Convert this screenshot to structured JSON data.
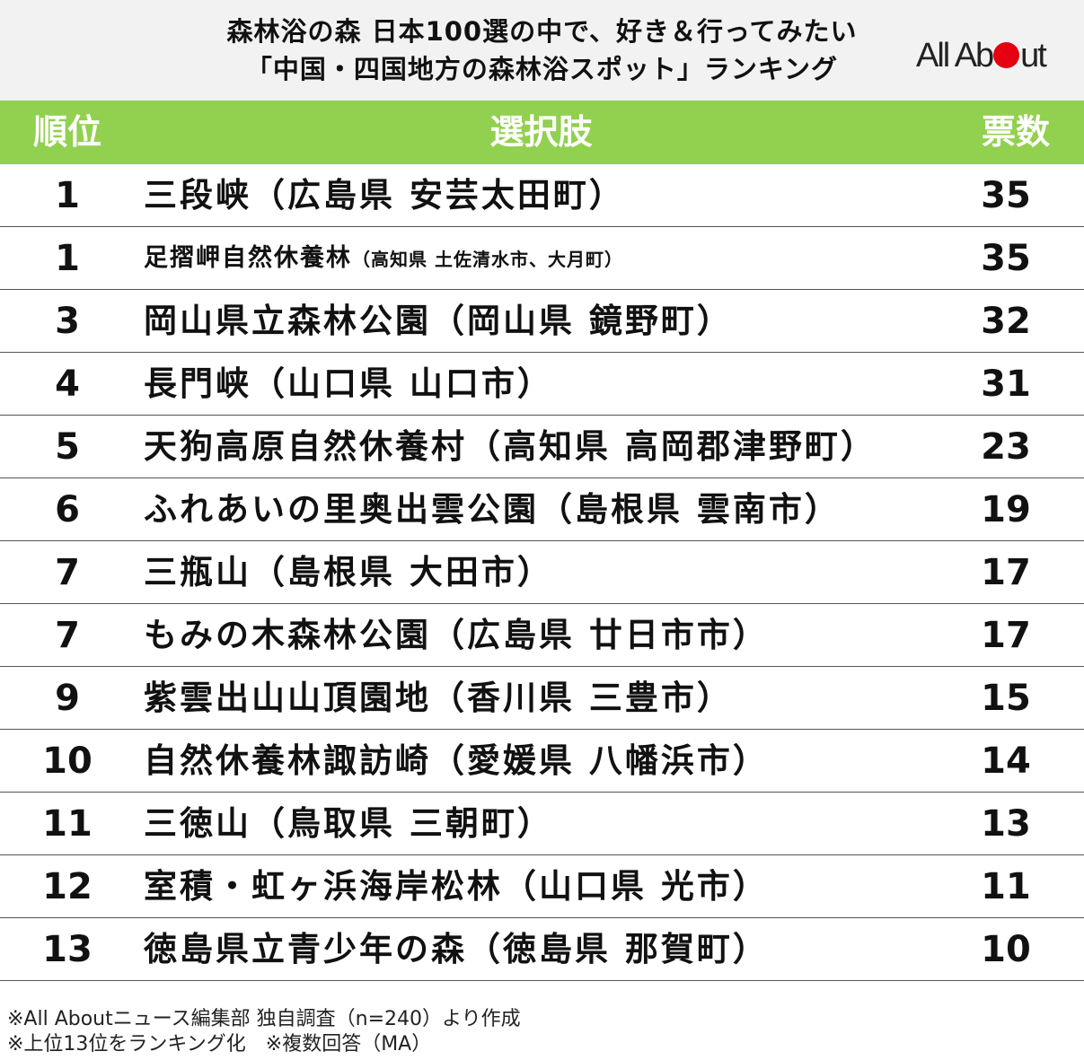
{
  "title": {
    "line1": "森林浴の森 日本100選の中で、好き＆行ってみたい",
    "line2": "「中国・四国地方の森林浴スポット」ランキング"
  },
  "logo": {
    "part1": "All Ab",
    "part2": "ut",
    "color": "#e50012"
  },
  "table": {
    "header_color": "#92d050",
    "headers": {
      "rank": "順位",
      "choice": "選択肢",
      "votes": "票数"
    },
    "rows": [
      {
        "rank": "1",
        "name": "三段峡（広島県 安芸太田町）",
        "sub": "",
        "votes": "35"
      },
      {
        "rank": "1",
        "name": "足摺岬自然休養林",
        "sub": "（高知県 土佐清水市、大月町）",
        "votes": "35"
      },
      {
        "rank": "3",
        "name": "岡山県立森林公園（岡山県 鏡野町）",
        "sub": "",
        "votes": "32"
      },
      {
        "rank": "4",
        "name": "長門峡（山口県 山口市）",
        "sub": "",
        "votes": "31"
      },
      {
        "rank": "5",
        "name": "天狗高原自然休養村（高知県 高岡郡津野町）",
        "sub": "",
        "votes": "23"
      },
      {
        "rank": "6",
        "name": "ふれあいの里奥出雲公園（島根県 雲南市）",
        "sub": "",
        "votes": "19"
      },
      {
        "rank": "7",
        "name": "三瓶山（島根県 大田市）",
        "sub": "",
        "votes": "17"
      },
      {
        "rank": "7",
        "name": "もみの木森林公園（広島県 廿日市市）",
        "sub": "",
        "votes": "17"
      },
      {
        "rank": "9",
        "name": "紫雲出山山頂園地（香川県 三豊市）",
        "sub": "",
        "votes": "15"
      },
      {
        "rank": "10",
        "name": "自然休養林諏訪崎（愛媛県 八幡浜市）",
        "sub": "",
        "votes": "14"
      },
      {
        "rank": "11",
        "name": "三徳山（鳥取県 三朝町）",
        "sub": "",
        "votes": "13"
      },
      {
        "rank": "12",
        "name": "室積・虹ヶ浜海岸松林（山口県 光市）",
        "sub": "",
        "votes": "11"
      },
      {
        "rank": "13",
        "name": "徳島県立青少年の森（徳島県 那賀町）",
        "sub": "",
        "votes": "10"
      }
    ]
  },
  "notes": [
    "※All Aboutニュース編集部 独自調査（n=240）より作成",
    "※上位13位をランキング化　※複数回答（MA）"
  ]
}
